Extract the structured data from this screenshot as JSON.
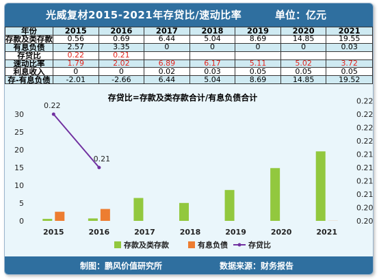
{
  "header": {
    "title": "光威复材2015-2021年存贷比/速动比率",
    "unit": "单位：亿元"
  },
  "table": {
    "columns": [
      "年份",
      "2015",
      "2016",
      "2017",
      "2018",
      "2019",
      "2020",
      "2021"
    ],
    "rows": [
      {
        "label": "存款及类存款",
        "cells": [
          "0.56",
          "0.69",
          "6.44",
          "5.04",
          "8.69",
          "14.85",
          "19.55"
        ]
      },
      {
        "label": "有息负债",
        "cells": [
          "2.57",
          "3.35",
          "0",
          "0",
          "0",
          "0",
          "0.03"
        ]
      },
      {
        "label": "存贷比",
        "cells": [
          "0.22",
          "0.21",
          "",
          "",
          "",
          "",
          ""
        ]
      },
      {
        "label": "速动比率",
        "cells": [
          "1.79",
          "2.02",
          "6.89",
          "6.17",
          "5.11",
          "5.02",
          "3.72"
        ]
      },
      {
        "label": "利息收入",
        "cells": [
          "0",
          "0",
          "0.02",
          "0.03",
          "0.05",
          "0.05",
          "0.05"
        ]
      },
      {
        "label": "存-有息负债",
        "cells": [
          "-2.01",
          "-2.66",
          "6.44",
          "5.04",
          "8.69",
          "14.85",
          "19.52"
        ]
      }
    ],
    "red_rows": [
      2,
      3
    ]
  },
  "chart_data": {
    "type": "bar",
    "title": "存贷比=存款及类存款合计/有息负债合计",
    "categories": [
      "2015",
      "2016",
      "2017",
      "2018",
      "2019",
      "2020",
      "2021"
    ],
    "series": [
      {
        "name": "存款及类存款",
        "type": "bar",
        "axis": "left",
        "color": "#92c83e",
        "values": [
          0.56,
          0.69,
          6.44,
          5.04,
          8.69,
          14.85,
          19.55
        ]
      },
      {
        "name": "有息负债",
        "type": "bar",
        "axis": "left",
        "color": "#ed7d31",
        "values": [
          2.57,
          3.35,
          0,
          0,
          0,
          0,
          0.03
        ]
      },
      {
        "name": "存贷比",
        "type": "line",
        "axis": "right",
        "color": "#7030a0",
        "values": [
          0.22,
          0.21,
          null,
          null,
          null,
          null,
          null
        ],
        "data_labels": [
          "0.22",
          "0.21"
        ]
      }
    ],
    "y_left": {
      "min": 0,
      "max": 30,
      "ticks": [
        0,
        5,
        10,
        15,
        20,
        25,
        30
      ],
      "tick_labels": [
        "0",
        "5",
        "10",
        "15",
        "20",
        "25",
        "30"
      ]
    },
    "y_right": {
      "min": 0.2,
      "max": 0.22,
      "ticks": [
        0.2,
        0.2025,
        0.205,
        0.2075,
        0.21,
        0.2125,
        0.215,
        0.2175,
        0.22,
        0.2225
      ],
      "tick_labels": [
        "0.20",
        "0.20",
        "0.21",
        "0.21",
        "0.21",
        "0.21",
        "0.22",
        "0.22",
        "0.22",
        "0.22"
      ]
    },
    "legend_position": "bottom",
    "grid": false
  },
  "footer": {
    "credit": "制图：鹏风价值研究所",
    "source": "数据来源：财务报告"
  }
}
